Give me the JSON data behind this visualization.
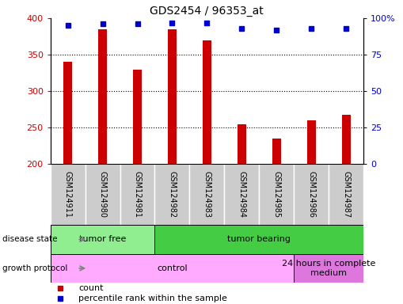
{
  "title": "GDS2454 / 96353_at",
  "samples": [
    "GSM124911",
    "GSM124980",
    "GSM124981",
    "GSM124982",
    "GSM124983",
    "GSM124984",
    "GSM124985",
    "GSM124986",
    "GSM124987"
  ],
  "counts": [
    340,
    385,
    330,
    385,
    370,
    255,
    235,
    260,
    268
  ],
  "percentile_ranks": [
    95,
    96,
    96,
    97,
    97,
    93,
    92,
    93,
    93
  ],
  "ylim_left": [
    200,
    400
  ],
  "ylim_right": [
    0,
    100
  ],
  "yticks_left": [
    200,
    250,
    300,
    350,
    400
  ],
  "yticks_right": [
    0,
    25,
    50,
    75,
    100
  ],
  "ytick_labels_right": [
    "0",
    "25",
    "50",
    "75",
    "100%"
  ],
  "bar_color": "#cc0000",
  "dot_color": "#0000cc",
  "bar_width": 0.25,
  "disease_state_groups": [
    {
      "label": "tumor free",
      "start": 0,
      "end": 3,
      "color": "#90ee90"
    },
    {
      "label": "tumor bearing",
      "start": 3,
      "end": 9,
      "color": "#44cc44"
    }
  ],
  "growth_protocol_groups": [
    {
      "label": "control",
      "start": 0,
      "end": 7,
      "color": "#ffaaff"
    },
    {
      "label": "24 hours in complete\nmedium",
      "start": 7,
      "end": 9,
      "color": "#dd77dd"
    }
  ],
  "legend_items": [
    {
      "label": "count",
      "color": "#cc0000"
    },
    {
      "label": "percentile rank within the sample",
      "color": "#0000cc"
    }
  ]
}
